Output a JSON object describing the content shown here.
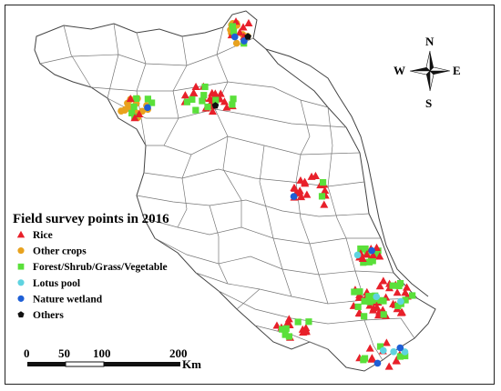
{
  "legend": {
    "title": "Field survey points in 2016",
    "items": [
      {
        "label": "Rice",
        "symbol": "triangle",
        "color": "#e8202a"
      },
      {
        "label": "Other crops",
        "symbol": "circle",
        "color": "#e8a21e"
      },
      {
        "label": "Forest/Shrub/Grass/Vegetable",
        "symbol": "square",
        "color": "#5ae03a"
      },
      {
        "label": "Lotus pool",
        "symbol": "circle",
        "color": "#5fd3e0"
      },
      {
        "label": "Nature wetland",
        "symbol": "circle",
        "color": "#1e5fd6"
      },
      {
        "label": "Others",
        "symbol": "pentagon",
        "color": "#111111"
      }
    ]
  },
  "compass": {
    "n": "N",
    "s": "S",
    "e": "E",
    "w": "W"
  },
  "scale_bar": {
    "ticks": [
      "0",
      "50",
      "100",
      "200"
    ],
    "unit": "Km"
  }
}
